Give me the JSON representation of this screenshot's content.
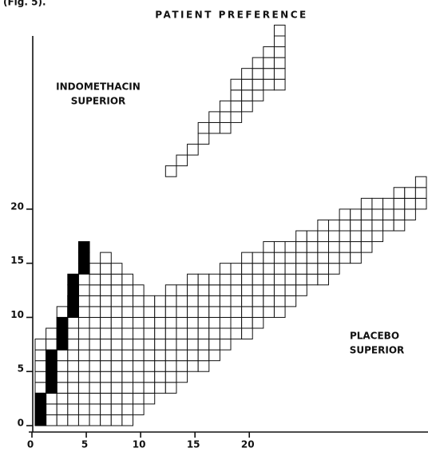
{
  "caption": "(Fig. 5).",
  "chart_data": {
    "type": "sequential",
    "title": "PATIENT PREFERENCE",
    "annotations": [
      "INDOMETHACIN",
      "SUPERIOR",
      "PLACEBO",
      "SUPERIOR"
    ],
    "series": [
      {
        "color": "#000000",
        "x": [
          0,
          0,
          0,
          1,
          1,
          1,
          1,
          2,
          2,
          2,
          3,
          3,
          3,
          3,
          4,
          4,
          4
        ],
        "values": [
          1,
          2,
          3,
          4,
          5,
          6,
          7,
          8,
          9,
          10,
          11,
          12,
          13,
          14,
          15,
          16,
          17
        ]
      }
    ],
    "xlim": [
      0,
      36
    ],
    "ylim": [
      0,
      36
    ],
    "xticks": [
      0,
      5,
      10,
      15,
      20
    ],
    "yticks": [
      0,
      5,
      10,
      15,
      20
    ]
  }
}
